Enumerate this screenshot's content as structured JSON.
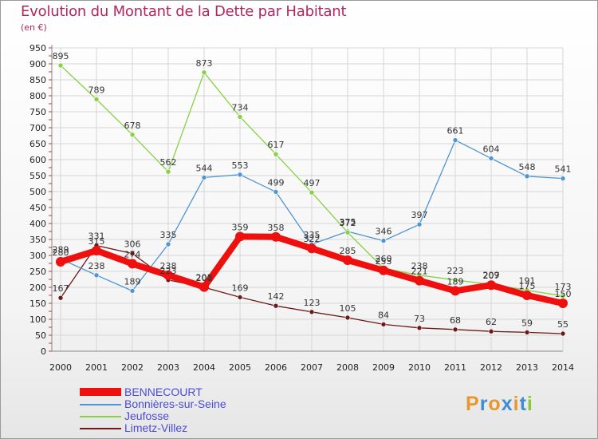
{
  "title": "Evolution du Montant de la Dette par Habitant",
  "unit": "(en €)",
  "logo": {
    "text": "Proxiti",
    "letter_colors": [
      "#e8962e",
      "#3d8ed6",
      "#e8962e",
      "#3d8ed6",
      "#e8962e",
      "#3d8ed6",
      "#8cc63f"
    ]
  },
  "chart_data": {
    "type": "line",
    "title": "Evolution du Montant de la Dette par Habitant",
    "ylabel": "(en €)",
    "xlabel": "",
    "ylim": [
      0,
      950
    ],
    "y_ticks": [
      0,
      50,
      100,
      150,
      200,
      250,
      300,
      350,
      400,
      450,
      500,
      550,
      600,
      650,
      700,
      750,
      800,
      850,
      900,
      950
    ],
    "x": [
      "2000",
      "2001",
      "2002",
      "2003",
      "2004",
      "2005",
      "2006",
      "2007",
      "2008",
      "2009",
      "2010",
      "2011",
      "2012",
      "2013",
      "2014"
    ],
    "grid": true,
    "legend_position": "bottom-left",
    "series": [
      {
        "name": "Limetz-Villez",
        "color": "#6b1a1a",
        "values": [
          167,
          331,
          306,
          223,
          200,
          169,
          142,
          123,
          105,
          84,
          73,
          68,
          62,
          59,
          55
        ]
      },
      {
        "name": "Bonnières-sur-Seine",
        "color": "#4f95d2",
        "values": [
          289,
          238,
          189,
          335,
          544,
          553,
          499,
          335,
          375,
          346,
          397,
          661,
          604,
          548,
          541
        ]
      },
      {
        "name": "Jeufosse",
        "color": "#86d243",
        "values": [
          895,
          789,
          678,
          562,
          873,
          734,
          617,
          497,
          372,
          260,
          238,
          223,
          209,
          191,
          173
        ]
      },
      {
        "name": "BENNECOURT",
        "color": "#ee0f0f",
        "values": [
          280,
          315,
          274,
          238,
          201,
          359,
          358,
          322,
          285,
          253,
          221,
          189,
          207,
          175,
          150
        ]
      }
    ]
  }
}
